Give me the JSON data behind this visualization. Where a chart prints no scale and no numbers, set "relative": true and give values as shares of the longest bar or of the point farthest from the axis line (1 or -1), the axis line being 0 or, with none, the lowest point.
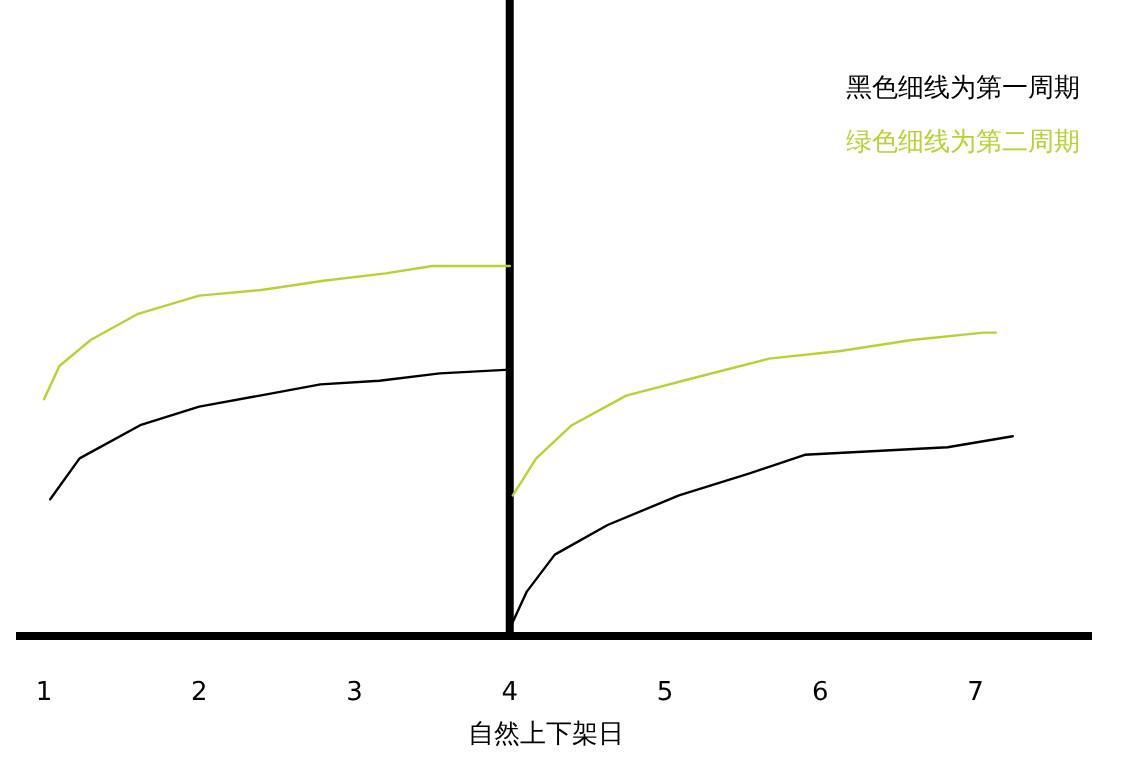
{
  "chart_data": {
    "type": "line",
    "relative": true,
    "xlabel": "自然上下架日",
    "xlim": [
      0.82,
      7.75
    ],
    "xticks": [
      1,
      2,
      3,
      4,
      5,
      6,
      7
    ],
    "legend": "top right",
    "ref_lines": [
      {
        "axis": "x",
        "value": 4,
        "color": "#000000"
      }
    ],
    "series": [
      {
        "name": "黑色细线为第一周期",
        "color": "#000000",
        "x": [
          1.04,
          1.23,
          1.62,
          2.0,
          2.39,
          2.78,
          3.16,
          3.55,
          4.0
        ],
        "values": [
          0.37,
          0.48,
          0.57,
          0.62,
          0.65,
          0.68,
          0.69,
          0.71,
          0.72
        ]
      },
      {
        "name": "绿色细线为第二周期",
        "color": "#b5d334",
        "x": [
          1.0,
          1.1,
          1.3,
          1.6,
          2.0,
          2.4,
          2.8,
          3.2,
          3.5,
          4.0
        ],
        "values": [
          0.64,
          0.73,
          0.8,
          0.87,
          0.92,
          0.935,
          0.96,
          0.98,
          1.0,
          1.0
        ]
      },
      {
        "color": "#000000",
        "x": [
          4.0,
          4.11,
          4.29,
          4.63,
          5.09,
          5.55,
          5.9,
          6.36,
          6.82,
          7.24
        ],
        "values": [
          0.02,
          0.12,
          0.22,
          0.3,
          0.38,
          0.44,
          0.49,
          0.5,
          0.51,
          0.54
        ]
      },
      {
        "color": "#b5d334",
        "x": [
          4.02,
          4.17,
          4.4,
          4.75,
          5.21,
          5.67,
          6.13,
          6.59,
          7.05,
          7.13
        ],
        "values": [
          0.38,
          0.48,
          0.57,
          0.65,
          0.7,
          0.75,
          0.77,
          0.8,
          0.82,
          0.82
        ]
      }
    ]
  }
}
